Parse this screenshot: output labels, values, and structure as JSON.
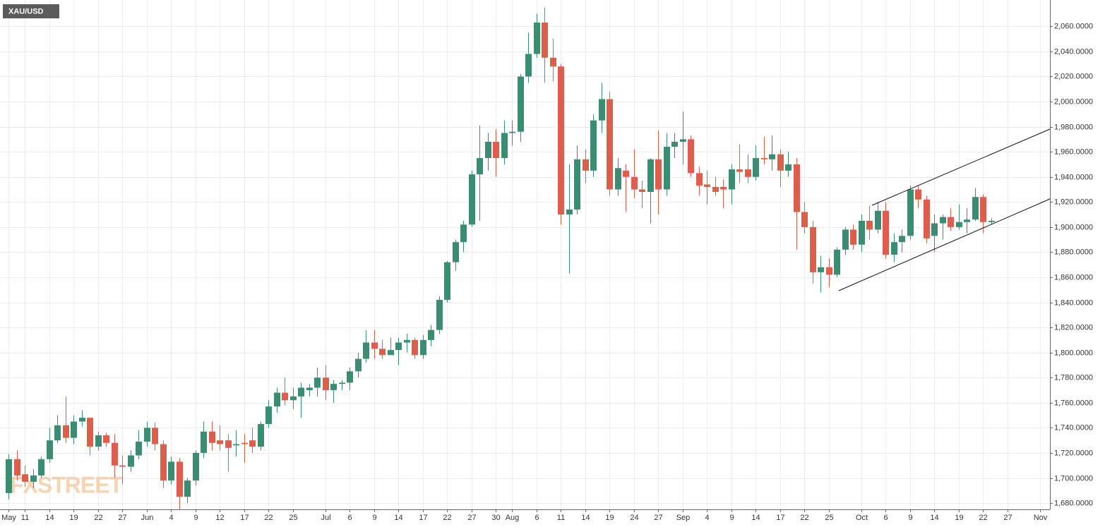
{
  "chart_data": {
    "type": "candlestick",
    "title": "XAU/USD",
    "watermark": "FXSTREET",
    "up_color": "#3b8c73",
    "down_color": "#dc5f4b",
    "grid": true,
    "ylim": [
      1675,
      2081
    ],
    "yticks": [
      {
        "value": 1680,
        "label": "1,680.0000"
      },
      {
        "value": 1700,
        "label": "1,700.0000"
      },
      {
        "value": 1720,
        "label": "1,720.0000"
      },
      {
        "value": 1740,
        "label": "1,740.0000"
      },
      {
        "value": 1760,
        "label": "1,760.0000"
      },
      {
        "value": 1780,
        "label": "1,780.0000"
      },
      {
        "value": 1800,
        "label": "1,800.0000"
      },
      {
        "value": 1820,
        "label": "1,820.0000"
      },
      {
        "value": 1840,
        "label": "1,840.0000"
      },
      {
        "value": 1860,
        "label": "1,860.0000"
      },
      {
        "value": 1880,
        "label": "1,880.0000"
      },
      {
        "value": 1900,
        "label": "1,900.0000"
      },
      {
        "value": 1920,
        "label": "1,920.0000"
      },
      {
        "value": 1940,
        "label": "1,940.0000"
      },
      {
        "value": 1960,
        "label": "1,960.0000"
      },
      {
        "value": 1980,
        "label": "1,980.0000"
      },
      {
        "value": 2000,
        "label": "2,000.0000"
      },
      {
        "value": 2020,
        "label": "2,020.0000"
      },
      {
        "value": 2040,
        "label": "2,040.0000"
      },
      {
        "value": 2060,
        "label": "2,060.0000"
      }
    ],
    "categories": [
      "May",
      null,
      "11",
      null,
      null,
      "14",
      null,
      null,
      "19",
      null,
      null,
      "22",
      null,
      null,
      "27",
      null,
      null,
      "Jun",
      null,
      null,
      "4",
      null,
      null,
      "9",
      null,
      null,
      "12",
      null,
      null,
      "17",
      null,
      null,
      "22",
      null,
      null,
      "25",
      null,
      null,
      null,
      "Jul",
      null,
      null,
      "6",
      null,
      null,
      "9",
      null,
      null,
      "14",
      null,
      null,
      "17",
      null,
      null,
      "22",
      null,
      null,
      "27",
      null,
      null,
      "30",
      null,
      "Aug",
      null,
      null,
      "6",
      null,
      null,
      "11",
      null,
      null,
      "14",
      null,
      null,
      "19",
      null,
      null,
      "24",
      null,
      null,
      "27",
      null,
      null,
      "Sep",
      null,
      null,
      "4",
      null,
      null,
      "9",
      null,
      null,
      "14",
      null,
      null,
      "17",
      null,
      null,
      "22",
      null,
      null,
      "25",
      null,
      null,
      null,
      "Oct",
      null,
      null,
      "6",
      null,
      null,
      "9",
      null,
      null,
      "14",
      null,
      null,
      "19",
      null,
      null,
      "22",
      null,
      null,
      "27",
      null,
      null,
      null,
      "Nov"
    ],
    "open": [
      1688,
      1715,
      1703,
      1697,
      1702,
      1715,
      1730,
      1742,
      1732,
      1745,
      1748,
      1725,
      1734,
      1728,
      1710,
      1709,
      1718,
      1729,
      1740,
      1727,
      1698,
      1713,
      1685,
      1698,
      1720,
      1737,
      1730,
      1730,
      1726,
      1728,
      1730,
      1725,
      1743,
      1757,
      1768,
      1762,
      1765,
      1770,
      1772,
      1780,
      1770,
      1775,
      1776,
      1785,
      1795,
      1808,
      1803,
      1798,
      1802,
      1808,
      1810,
      1798,
      1810,
      1818,
      1842,
      1872,
      1888,
      1902,
      1942,
      1955,
      1968,
      1955,
      1975,
      1976,
      2020,
      2038,
      2063,
      2035,
      2028,
      1910,
      1914,
      1954,
      1945,
      1985,
      2002,
      1930,
      1945,
      1940,
      1930,
      1928,
      1954,
      1930,
      1964,
      1968,
      1970,
      1943,
      1934,
      1932,
      1932,
      1930,
      1946,
      1946,
      1940,
      1955,
      1954,
      1958,
      1945,
      1950,
      1912,
      1900,
      1864,
      1868,
      1862,
      1882,
      1898,
      1886,
      1905,
      1898,
      1913,
      1878,
      1888,
      1893,
      1930,
      1922,
      1893,
      1903,
      1908,
      1900,
      1904,
      1906,
      1924,
      1904,
      null,
      null,
      null,
      null,
      null,
      null
    ],
    "high": [
      1719,
      1722,
      1710,
      1707,
      1717,
      1740,
      1750,
      1765,
      1750,
      1754,
      1748,
      1737,
      1736,
      1735,
      1718,
      1722,
      1738,
      1745,
      1744,
      1730,
      1717,
      1716,
      1700,
      1722,
      1745,
      1745,
      1742,
      1735,
      1738,
      1735,
      1740,
      1745,
      1762,
      1772,
      1780,
      1772,
      1776,
      1775,
      1788,
      1790,
      1778,
      1778,
      1788,
      1800,
      1818,
      1818,
      1810,
      1812,
      1812,
      1815,
      1812,
      1814,
      1822,
      1845,
      1873,
      1890,
      1905,
      1945,
      1981,
      1975,
      1978,
      1985,
      1985,
      2022,
      2055,
      2070,
      2075,
      2050,
      2030,
      1950,
      1965,
      1962,
      1990,
      2015,
      2008,
      1955,
      1950,
      1962,
      1937,
      1955,
      1977,
      1975,
      1975,
      1992,
      1973,
      1948,
      1945,
      1940,
      1938,
      1950,
      1966,
      1958,
      1965,
      1972,
      1973,
      1962,
      1960,
      1955,
      1920,
      1905,
      1877,
      1875,
      1884,
      1900,
      1902,
      1910,
      1917,
      1920,
      1920,
      1895,
      1898,
      1933,
      1933,
      1925,
      1910,
      1910,
      1915,
      1918,
      1915,
      1931,
      1926,
      1907,
      null,
      null,
      null,
      null,
      null,
      null
    ],
    "low": [
      1683,
      1698,
      1693,
      1692,
      1700,
      1712,
      1728,
      1728,
      1727,
      1741,
      1718,
      1722,
      1725,
      1700,
      1695,
      1705,
      1715,
      1725,
      1722,
      1692,
      1695,
      1675,
      1680,
      1694,
      1716,
      1722,
      1722,
      1705,
      1717,
      1712,
      1720,
      1722,
      1740,
      1752,
      1758,
      1755,
      1748,
      1765,
      1765,
      1762,
      1760,
      1770,
      1770,
      1780,
      1792,
      1795,
      1795,
      1798,
      1790,
      1800,
      1795,
      1795,
      1805,
      1815,
      1840,
      1865,
      1880,
      1900,
      1905,
      1945,
      1940,
      1950,
      1965,
      1968,
      2015,
      2035,
      2015,
      2016,
      1902,
      1863,
      1910,
      1935,
      1940,
      1975,
      1925,
      1925,
      1912,
      1923,
      1915,
      1903,
      1910,
      1925,
      1955,
      1950,
      1940,
      1925,
      1918,
      1925,
      1915,
      1918,
      1935,
      1935,
      1937,
      1950,
      1945,
      1932,
      1940,
      1882,
      1895,
      1855,
      1848,
      1852,
      1860,
      1878,
      1882,
      1880,
      1890,
      1895,
      1875,
      1872,
      1880,
      1890,
      1915,
      1887,
      1880,
      1890,
      1897,
      1898,
      1895,
      1905,
      1895,
      1902,
      null,
      null,
      null,
      null,
      null,
      null
    ],
    "close": [
      1715,
      1702,
      1697,
      1702,
      1715,
      1730,
      1742,
      1732,
      1745,
      1748,
      1725,
      1734,
      1728,
      1710,
      1709,
      1718,
      1729,
      1740,
      1727,
      1698,
      1713,
      1685,
      1698,
      1720,
      1737,
      1728,
      1727,
      1724,
      1727,
      1727,
      1725,
      1743,
      1757,
      1768,
      1762,
      1765,
      1772,
      1772,
      1780,
      1770,
      1775,
      1776,
      1785,
      1795,
      1808,
      1803,
      1798,
      1802,
      1808,
      1810,
      1798,
      1810,
      1818,
      1842,
      1872,
      1888,
      1902,
      1942,
      1955,
      1968,
      1955,
      1975,
      1976,
      2020,
      2038,
      2063,
      2035,
      2028,
      1910,
      1914,
      1954,
      1945,
      1985,
      2002,
      1930,
      1947,
      1940,
      1930,
      1928,
      1954,
      1930,
      1964,
      1968,
      1970,
      1943,
      1933,
      1932,
      1928,
      1930,
      1946,
      1944,
      1940,
      1955,
      1954,
      1958,
      1945,
      1950,
      1912,
      1900,
      1864,
      1868,
      1862,
      1882,
      1898,
      1886,
      1905,
      1898,
      1913,
      1878,
      1888,
      1893,
      1930,
      1922,
      1891,
      1903,
      1908,
      1900,
      1904,
      1906,
      1924,
      1904,
      1905,
      null,
      null,
      null,
      null,
      null,
      null
    ]
  }
}
